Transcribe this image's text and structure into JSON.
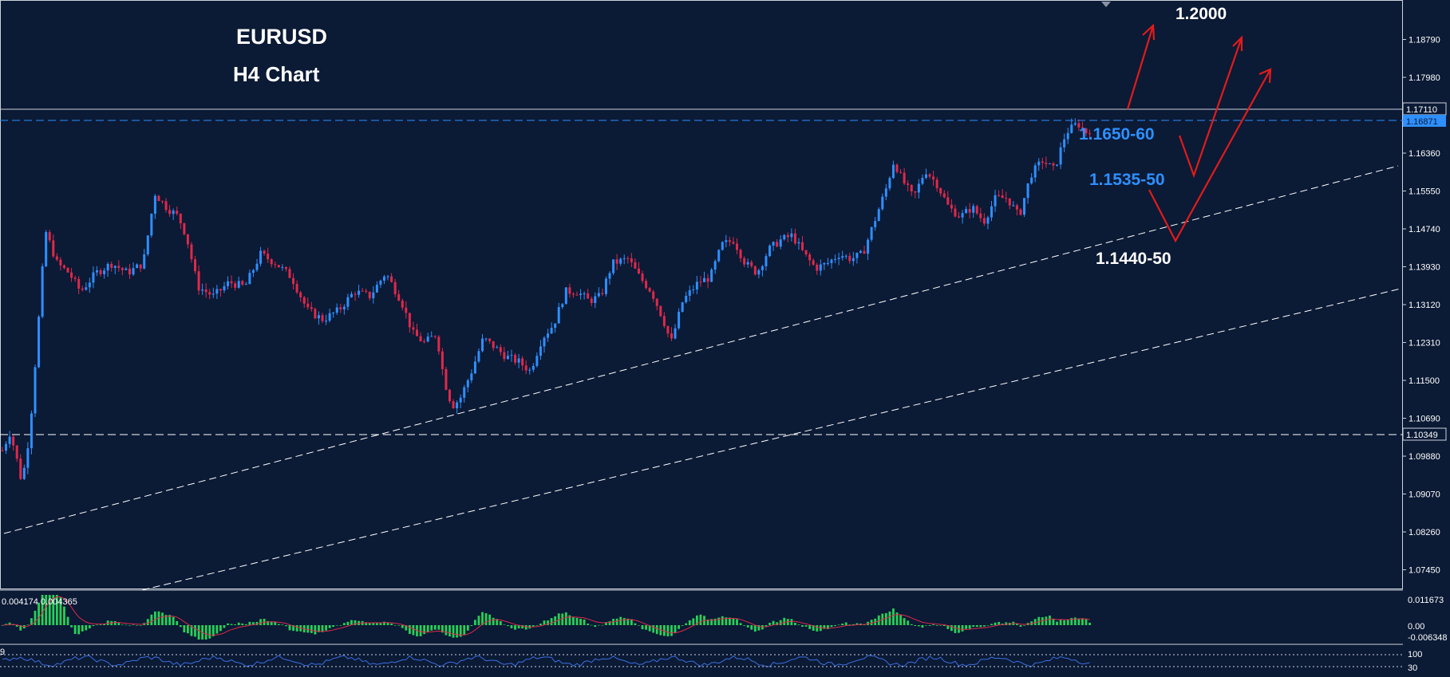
{
  "chart_data": {
    "type": "candlestick",
    "title": "EURUSD",
    "subtitle": "H4 Chart",
    "symbol": "EURUSD",
    "timeframe": "H4",
    "ylim": [
      1.0705,
      1.196
    ],
    "y_ticks": [
      "1.18790",
      "1.17980",
      "1.17110",
      "1.16871",
      "1.16360",
      "1.15550",
      "1.14740",
      "1.13930",
      "1.13120",
      "1.12310",
      "1.11500",
      "1.10690",
      "1.10349",
      "1.09880",
      "1.09070",
      "1.08260",
      "1.07450"
    ],
    "grid": false,
    "price_line": {
      "value": 1.1711,
      "label": "1.17110"
    },
    "bid_line": {
      "value": 1.16871,
      "label": "1.16871"
    },
    "horizontal_level": {
      "value": 1.10349,
      "label": "1.10349"
    },
    "annotations": [
      {
        "text": "1.2000",
        "color": "#ffffff"
      },
      {
        "text": "1.1650-60",
        "color": "#2e8fff"
      },
      {
        "text": "1.1535-50",
        "color": "#2e8fff"
      },
      {
        "text": "1.1440-50",
        "color": "#ffffff"
      }
    ],
    "price_path": [
      [
        0,
        1.1
      ],
      [
        0.01,
        1.104
      ],
      [
        0.02,
        1.097
      ],
      [
        0.025,
        1.093
      ],
      [
        0.035,
        1.104
      ],
      [
        0.045,
        1.125
      ],
      [
        0.055,
        1.147
      ],
      [
        0.07,
        1.14
      ],
      [
        0.085,
        1.138
      ],
      [
        0.1,
        1.134
      ],
      [
        0.12,
        1.138
      ],
      [
        0.14,
        1.14
      ],
      [
        0.16,
        1.138
      ],
      [
        0.18,
        1.14
      ],
      [
        0.195,
        1.155
      ],
      [
        0.21,
        1.152
      ],
      [
        0.225,
        1.15
      ],
      [
        0.235,
        1.146
      ],
      [
        0.25,
        1.135
      ],
      [
        0.27,
        1.133
      ],
      [
        0.29,
        1.136
      ],
      [
        0.31,
        1.135
      ],
      [
        0.33,
        1.142
      ],
      [
        0.35,
        1.14
      ],
      [
        0.37,
        1.137
      ],
      [
        0.39,
        1.13
      ],
      [
        0.41,
        1.128
      ],
      [
        0.43,
        1.13
      ],
      [
        0.45,
        1.134
      ],
      [
        0.47,
        1.133
      ],
      [
        0.49,
        1.138
      ],
      [
        0.51,
        1.132
      ],
      [
        0.525,
        1.125
      ],
      [
        0.54,
        1.123
      ],
      [
        0.555,
        1.125
      ],
      [
        0.565,
        1.115
      ],
      [
        0.575,
        1.1095
      ],
      [
        0.585,
        1.111
      ],
      [
        0.6,
        1.117
      ],
      [
        0.615,
        1.124
      ],
      [
        0.63,
        1.122
      ],
      [
        0.645,
        1.12
      ],
      [
        0.66,
        1.119
      ],
      [
        0.675,
        1.117
      ],
      [
        0.69,
        1.124
      ],
      [
        0.705,
        1.127
      ],
      [
        0.72,
        1.134
      ],
      [
        0.735,
        1.134
      ],
      [
        0.75,
        1.132
      ],
      [
        0.765,
        1.133
      ],
      [
        0.78,
        1.14
      ],
      [
        0.8,
        1.141
      ],
      [
        0.815,
        1.137
      ],
      [
        0.83,
        1.134
      ],
      [
        0.845,
        1.128
      ],
      [
        0.855,
        1.123
      ],
      [
        0.87,
        1.132
      ],
      [
        0.89,
        1.136
      ],
      [
        0.905,
        1.137
      ],
      [
        0.92,
        1.144
      ],
      [
        0.935,
        1.145
      ],
      [
        0.95,
        1.14
      ],
      [
        0.965,
        1.138
      ],
      [
        0.98,
        1.143
      ],
      [
        0.995,
        1.145
      ],
      [
        1.01,
        1.146
      ],
      [
        1.025,
        1.142
      ],
      [
        1.04,
        1.139
      ],
      [
        1.055,
        1.14
      ],
      [
        1.07,
        1.142
      ],
      [
        1.085,
        1.141
      ],
      [
        1.1,
        1.142
      ],
      [
        1.115,
        1.149
      ],
      [
        1.13,
        1.156
      ],
      [
        1.14,
        1.162
      ],
      [
        1.15,
        1.158
      ],
      [
        1.165,
        1.154
      ],
      [
        1.18,
        1.16
      ],
      [
        1.195,
        1.157
      ],
      [
        1.21,
        1.152
      ],
      [
        1.225,
        1.15
      ],
      [
        1.24,
        1.152
      ],
      [
        1.255,
        1.149
      ],
      [
        1.27,
        1.154
      ],
      [
        1.285,
        1.154
      ],
      [
        1.3,
        1.15
      ],
      [
        1.315,
        1.159
      ],
      [
        1.33,
        1.162
      ],
      [
        1.345,
        1.16
      ],
      [
        1.36,
        1.168
      ],
      [
        1.375,
        1.17
      ],
      [
        1.385,
        1.168
      ],
      [
        1.395,
        1.169
      ]
    ],
    "indicator_macd": {
      "label": "0.004174 0.004365",
      "y_ticks": [
        "0.011673",
        "0.00",
        "-0.006348"
      ],
      "ylim": [
        -0.006348,
        0.011673
      ]
    },
    "indicator_osc": {
      "label": "9",
      "y_ticks": [
        "100",
        "30"
      ]
    }
  },
  "colors": {
    "background": "#0b1a35",
    "bull": "#2e8fff",
    "bear": "#e0294a",
    "annotation_blue": "#2e8fff",
    "arrow": "#e21b1b",
    "hist": "#27d157",
    "signal": "#e0294a",
    "osc_line": "#3b6fe0"
  }
}
